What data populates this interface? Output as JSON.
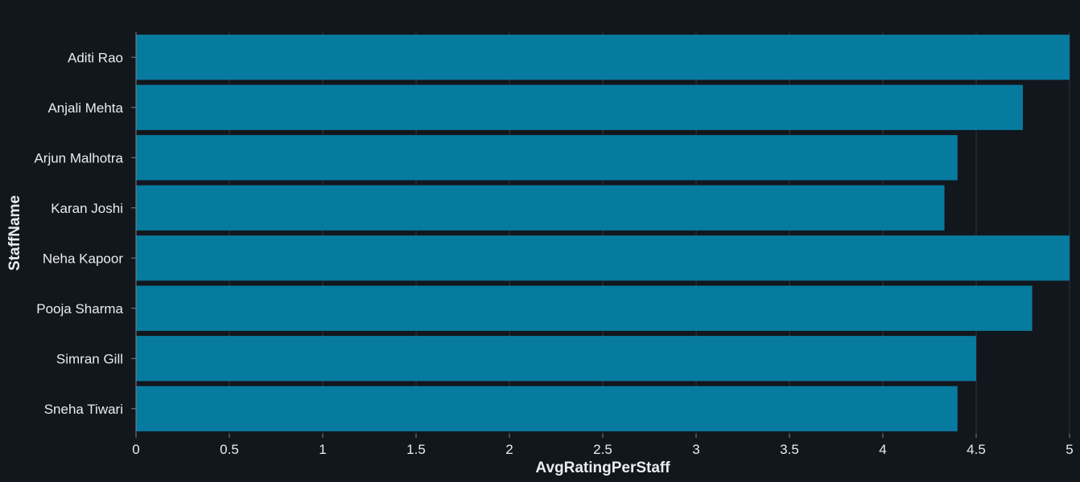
{
  "chart_data": {
    "type": "bar",
    "orientation": "horizontal",
    "categories": [
      "Aditi Rao",
      "Anjali Mehta",
      "Arjun Malhotra",
      "Karan Joshi",
      "Neha Kapoor",
      "Pooja Sharma",
      "Simran Gill",
      "Sneha Tiwari"
    ],
    "values": [
      5.0,
      4.75,
      4.4,
      4.33,
      5.0,
      4.8,
      4.5,
      4.4
    ],
    "xlabel": "AvgRatingPerStaff",
    "ylabel": "StaffName",
    "xlim": [
      0,
      5
    ],
    "xticks": [
      "0",
      "0.5",
      "1",
      "1.5",
      "2",
      "2.5",
      "3",
      "3.5",
      "4",
      "4.5",
      "5"
    ],
    "grid": true,
    "legend": "none",
    "bar_color": "#077a9f",
    "background": "#12161d"
  }
}
